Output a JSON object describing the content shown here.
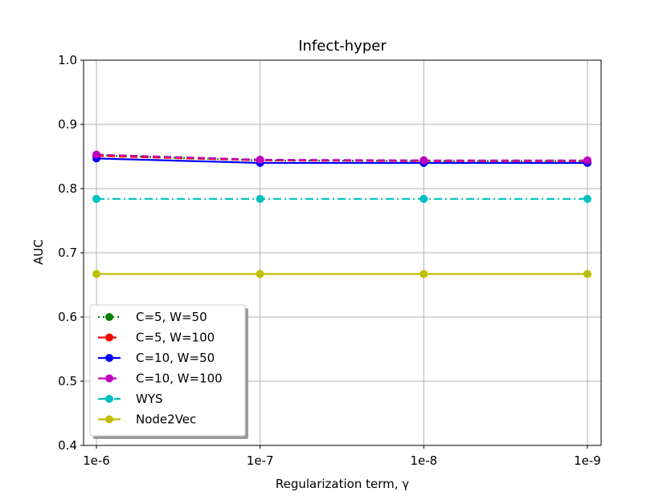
{
  "chart_data": {
    "type": "line",
    "title": "Infect-hyper",
    "xlabel": "Regularization term, γ",
    "ylabel": "AUC",
    "categories": [
      "1e-6",
      "1e-7",
      "1e-8",
      "1e-9"
    ],
    "ylim": [
      0.4,
      1.0
    ],
    "yticks": [
      "0.4",
      "0.5",
      "0.6",
      "0.7",
      "0.8",
      "0.9",
      "1.0"
    ],
    "grid": true,
    "legend_position": "lower-left",
    "series": [
      {
        "name": "C=5, W=50",
        "values": [
          0.852,
          0.844,
          0.843,
          0.843
        ],
        "color": "#007f00",
        "linestyle": "dotted"
      },
      {
        "name": "C=5, W=100",
        "values": [
          0.851,
          0.844,
          0.843,
          0.843
        ],
        "color": "#ff0000",
        "linestyle": "dashed"
      },
      {
        "name": "C=10, W=50",
        "values": [
          0.847,
          0.84,
          0.84,
          0.84
        ],
        "color": "#0000ff",
        "linestyle": "solid"
      },
      {
        "name": "C=10, W=100",
        "values": [
          0.853,
          0.845,
          0.844,
          0.844
        ],
        "color": "#bf00bf",
        "linestyle": "dashed"
      },
      {
        "name": "WYS",
        "values": [
          0.784,
          0.784,
          0.784,
          0.784
        ],
        "color": "#00bfbf",
        "linestyle": "dashdot"
      },
      {
        "name": "Node2Vec",
        "values": [
          0.667,
          0.667,
          0.667,
          0.667
        ],
        "color": "#bfbf00",
        "linestyle": "solid"
      }
    ]
  }
}
